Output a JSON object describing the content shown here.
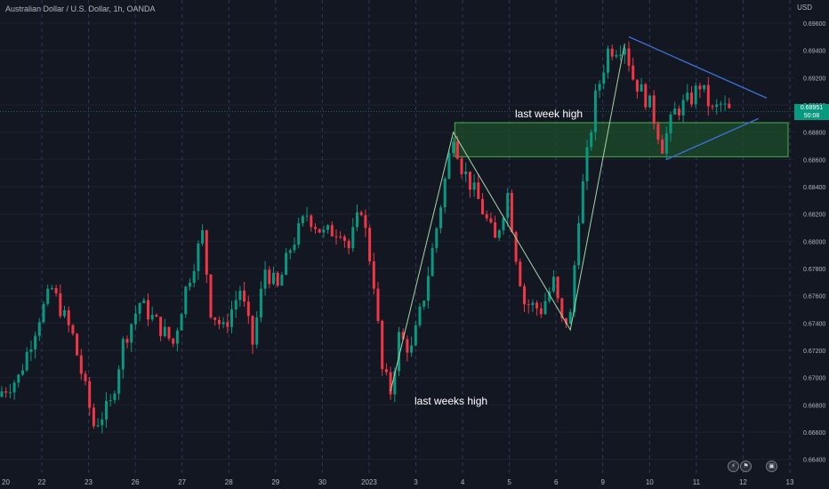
{
  "header": {
    "symbol_title": "Australian Dollar / U.S. Dollar, 1h, OANDA",
    "currency": "USD"
  },
  "price_tag": {
    "price": "0.68951",
    "countdown": "50:08"
  },
  "annotations": {
    "upper": "last week high",
    "lower": "last weeks high"
  },
  "colors": {
    "background": "#131722",
    "up_candle": "#089981",
    "down_candle": "#f23645",
    "zone_fill": "#1e4d2b",
    "zone_border": "#4caf50",
    "trendline": "#3d6fd6",
    "zigzag": "#a5d6a7"
  },
  "icons": [
    "lightning-icon",
    "flag-icon",
    "calendar-event-icon"
  ],
  "chart_data": {
    "type": "candlestick",
    "y_axis": {
      "ticks": [
        "0.69600",
        "0.69400",
        "0.69200",
        "0.69000",
        "0.68800",
        "0.68600",
        "0.68400",
        "0.68200",
        "0.68000",
        "0.67800",
        "0.67600",
        "0.67400",
        "0.67200",
        "0.67000",
        "0.66800",
        "0.66600",
        "0.66400"
      ],
      "range": [
        0.663,
        0.6977
      ]
    },
    "x_axis": {
      "ticks": [
        "20",
        "22",
        "23",
        "26",
        "27",
        "28",
        "29",
        "30",
        "2023",
        "3",
        "4",
        "5",
        "6",
        "9",
        "10",
        "11",
        "12",
        "13"
      ]
    },
    "last_price": 0.68951,
    "path_points": [
      [
        0,
        0.669
      ],
      [
        4,
        0.67
      ],
      [
        9,
        0.6745
      ],
      [
        12,
        0.6765
      ],
      [
        17,
        0.673
      ],
      [
        22,
        0.6665
      ],
      [
        26,
        0.668
      ],
      [
        29,
        0.6725
      ],
      [
        33,
        0.6755
      ],
      [
        37,
        0.674
      ],
      [
        41,
        0.6725
      ],
      [
        44,
        0.6765
      ],
      [
        48,
        0.6805
      ],
      [
        50,
        0.675
      ],
      [
        53,
        0.6735
      ],
      [
        57,
        0.6765
      ],
      [
        60,
        0.6725
      ],
      [
        63,
        0.678
      ],
      [
        66,
        0.6765
      ],
      [
        69,
        0.6795
      ],
      [
        73,
        0.682
      ],
      [
        77,
        0.6805
      ],
      [
        81,
        0.681
      ],
      [
        83,
        0.6795
      ],
      [
        86,
        0.6825
      ],
      [
        89,
        0.677
      ],
      [
        91,
        0.6705
      ],
      [
        93,
        0.669
      ],
      [
        95,
        0.673
      ],
      [
        98,
        0.672
      ],
      [
        101,
        0.676
      ],
      [
        104,
        0.681
      ],
      [
        108,
        0.688
      ],
      [
        110,
        0.6855
      ],
      [
        114,
        0.683
      ],
      [
        118,
        0.68
      ],
      [
        121,
        0.6835
      ],
      [
        123,
        0.679
      ],
      [
        125,
        0.6755
      ],
      [
        129,
        0.675
      ],
      [
        132,
        0.677
      ],
      [
        134,
        0.674
      ],
      [
        136,
        0.6745
      ],
      [
        138,
        0.682
      ],
      [
        142,
        0.6905
      ],
      [
        145,
        0.694
      ],
      [
        149,
        0.6945
      ],
      [
        151,
        0.692
      ],
      [
        155,
        0.69
      ],
      [
        158,
        0.687
      ],
      [
        161,
        0.6895
      ],
      [
        165,
        0.6905
      ],
      [
        167,
        0.6915
      ],
      [
        170,
        0.6895
      ],
      [
        172,
        0.69
      ],
      [
        174,
        0.6895
      ]
    ],
    "zone": {
      "from_index": 109,
      "price_top": 0.6887,
      "price_bottom": 0.6862,
      "extends_to": "axis"
    },
    "zigzag": [
      [
        0.669,
        0
      ],
      [
        0.688,
        0
      ],
      [
        0.6735,
        0
      ],
      [
        0.6945,
        0
      ]
    ],
    "zigzag_indices": [
      [
        93,
        0.669
      ],
      [
        108,
        0.688
      ],
      [
        136,
        0.6735
      ],
      [
        149,
        0.6945
      ]
    ],
    "triangle": {
      "upper": [
        [
          150,
          0.695
        ],
        [
          183,
          0.6905
        ]
      ],
      "lower": [
        [
          159,
          0.686
        ],
        [
          181,
          0.689
        ]
      ]
    },
    "candle_count": 175
  }
}
